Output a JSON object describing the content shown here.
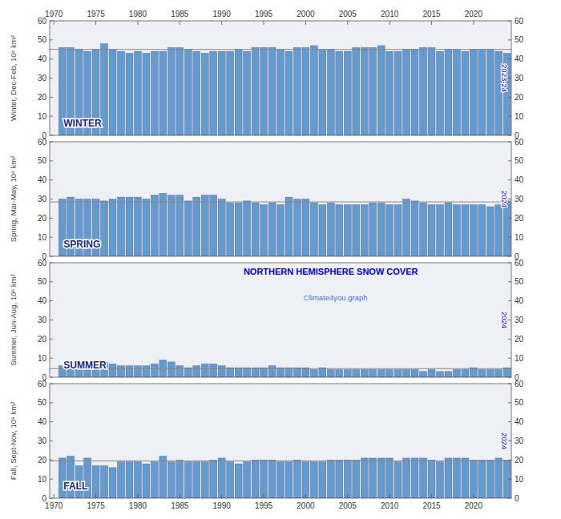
{
  "chart_data": [
    {
      "type": "bar",
      "y_label": "Winter, Dec-Feb, 10⁶ km²",
      "label": "WINTER",
      "annotation": "2023-24",
      "x": [
        1971,
        1972,
        1973,
        1974,
        1975,
        1976,
        1977,
        1978,
        1979,
        1980,
        1981,
        1982,
        1983,
        1984,
        1985,
        1986,
        1987,
        1988,
        1989,
        1990,
        1991,
        1992,
        1993,
        1994,
        1995,
        1996,
        1997,
        1998,
        1999,
        2000,
        2001,
        2002,
        2003,
        2004,
        2005,
        2006,
        2007,
        2008,
        2009,
        2010,
        2011,
        2012,
        2013,
        2014,
        2015,
        2016,
        2017,
        2018,
        2019,
        2020,
        2021,
        2022,
        2023,
        2024
      ],
      "values": [
        46,
        46,
        45,
        44,
        45,
        48,
        45,
        44,
        43,
        44,
        43,
        44,
        44,
        46,
        46,
        45,
        44,
        43,
        44,
        44,
        44,
        45,
        44,
        46,
        46,
        46,
        45,
        44,
        46,
        46,
        47,
        45,
        45,
        44,
        44,
        46,
        46,
        46,
        47,
        44,
        44,
        45,
        45,
        46,
        46,
        44,
        45,
        45,
        44,
        45,
        45,
        45,
        44,
        43
      ],
      "mean": 45.0,
      "color": "#6699CC",
      "xlim": [
        1969.5,
        2024.5
      ],
      "xticks": [
        1970,
        1975,
        1980,
        1985,
        1990,
        1995,
        2000,
        2005,
        2010,
        2015,
        2020
      ],
      "ylim": [
        0,
        60
      ],
      "yticks": [
        0,
        10,
        20,
        30,
        40,
        50,
        60
      ],
      "y2lim": [
        0,
        60
      ],
      "y2ticks": [
        0,
        10,
        20,
        30,
        40,
        50,
        60
      ],
      "grid": false
    },
    {
      "type": "bar",
      "y_label": "Spring, Mar-May, 10⁶ km²",
      "label": "SPRING",
      "annotation": "2024",
      "x": [
        1971,
        1972,
        1973,
        1974,
        1975,
        1976,
        1977,
        1978,
        1979,
        1980,
        1981,
        1982,
        1983,
        1984,
        1985,
        1986,
        1987,
        1988,
        1989,
        1990,
        1991,
        1992,
        1993,
        1994,
        1995,
        1996,
        1997,
        1998,
        1999,
        2000,
        2001,
        2002,
        2003,
        2004,
        2005,
        2006,
        2007,
        2008,
        2009,
        2010,
        2011,
        2012,
        2013,
        2014,
        2015,
        2016,
        2017,
        2018,
        2019,
        2020,
        2021,
        2022,
        2023,
        2024
      ],
      "values": [
        30,
        31,
        30,
        30,
        30,
        29,
        30,
        31,
        31,
        31,
        30,
        32,
        33,
        32,
        32,
        29,
        31,
        32,
        32,
        30,
        28,
        28,
        29,
        28,
        27,
        28,
        27,
        31,
        30,
        30,
        28,
        27,
        28,
        27,
        27,
        27,
        27,
        28,
        28,
        27,
        27,
        30,
        29,
        28,
        27,
        27,
        28,
        27,
        27,
        27,
        27,
        26,
        27,
        29
      ],
      "mean": 28.5,
      "color": "#6699CC",
      "xlim": [
        1969.5,
        2024.5
      ],
      "xticks": [
        1970,
        1975,
        1980,
        1985,
        1990,
        1995,
        2000,
        2005,
        2010,
        2015,
        2020
      ],
      "ylim": [
        0,
        60
      ],
      "yticks": [
        0,
        10,
        20,
        30,
        40,
        50,
        60
      ],
      "y2lim": [
        0,
        60
      ],
      "y2ticks": [
        0,
        10,
        20,
        30,
        40,
        50,
        60
      ],
      "tick_labels": "y",
      "grid": false
    },
    {
      "type": "bar",
      "title": "NORTHERN HEMISPHERE SNOW COVER",
      "subtitle": "Climate4you graph",
      "y_label": "Summer, Jun-Aug, 10⁶ km²",
      "label": "SUMMER",
      "annotation": "2024",
      "x": [
        1971,
        1972,
        1973,
        1974,
        1975,
        1976,
        1977,
        1978,
        1979,
        1980,
        1981,
        1982,
        1983,
        1984,
        1985,
        1986,
        1987,
        1988,
        1989,
        1990,
        1991,
        1992,
        1993,
        1994,
        1995,
        1996,
        1997,
        1998,
        1999,
        2000,
        2001,
        2002,
        2003,
        2004,
        2005,
        2006,
        2007,
        2008,
        2009,
        2010,
        2011,
        2012,
        2013,
        2014,
        2015,
        2016,
        2017,
        2018,
        2019,
        2020,
        2021,
        2022,
        2023,
        2024
      ],
      "values": [
        6,
        6,
        6,
        6,
        6,
        8,
        7,
        6,
        6,
        6,
        6,
        7,
        9,
        8,
        6,
        5,
        6,
        7,
        7,
        6,
        5,
        5,
        5,
        5,
        5,
        6,
        5,
        5,
        5,
        5,
        4,
        5,
        4,
        4,
        4,
        4,
        4,
        4,
        4,
        4,
        4,
        4,
        4,
        3,
        4,
        3,
        3,
        4,
        4,
        5,
        4,
        4,
        4,
        5
      ],
      "mean": 4.5,
      "color": "#6699CC",
      "xlim": [
        1969.5,
        2024.5
      ],
      "xticks": [
        1970,
        1975,
        1980,
        1985,
        1990,
        1995,
        2000,
        2005,
        2010,
        2015,
        2020
      ],
      "ylim": [
        0,
        60
      ],
      "yticks": [
        0,
        10,
        20,
        30,
        40,
        50,
        60
      ],
      "y2lim": [
        0,
        60
      ],
      "y2ticks": [
        0,
        10,
        20,
        30,
        40,
        50,
        60
      ],
      "tick_labels": "y",
      "grid": false
    },
    {
      "type": "bar",
      "y_label": "Fall, Sept-Nov, 10⁶ km²",
      "label": "FALL",
      "annotation": "2024",
      "x": [
        1971,
        1972,
        1973,
        1974,
        1975,
        1976,
        1977,
        1978,
        1979,
        1980,
        1981,
        1982,
        1983,
        1984,
        1985,
        1986,
        1987,
        1988,
        1989,
        1990,
        1991,
        1992,
        1993,
        1994,
        1995,
        1996,
        1997,
        1998,
        1999,
        2000,
        2001,
        2002,
        2003,
        2004,
        2005,
        2006,
        2007,
        2008,
        2009,
        2010,
        2011,
        2012,
        2013,
        2014,
        2015,
        2016,
        2017,
        2018,
        2019,
        2020,
        2021,
        2022,
        2023,
        2024
      ],
      "values": [
        21,
        22,
        17,
        21,
        17,
        17,
        16,
        19,
        19,
        19,
        18,
        19,
        22,
        19,
        20,
        19,
        19,
        19,
        20,
        21,
        19,
        18,
        19,
        20,
        20,
        20,
        19,
        19,
        20,
        19,
        19,
        19,
        20,
        20,
        20,
        20,
        21,
        21,
        21,
        21,
        19,
        21,
        21,
        21,
        20,
        19,
        21,
        21,
        21,
        20,
        20,
        20,
        21,
        20
      ],
      "mean": 19.5,
      "color": "#6699CC",
      "xlim": [
        1969.5,
        2024.5
      ],
      "xticks": [
        1970,
        1975,
        1980,
        1985,
        1990,
        1995,
        2000,
        2005,
        2010,
        2015,
        2020
      ],
      "ylim": [
        0,
        60
      ],
      "yticks": [
        0,
        10,
        20,
        30,
        40,
        50,
        60
      ],
      "y2lim": [
        0,
        60
      ],
      "y2ticks": [
        0,
        10,
        20,
        30,
        40,
        50,
        60
      ],
      "grid": false
    }
  ]
}
